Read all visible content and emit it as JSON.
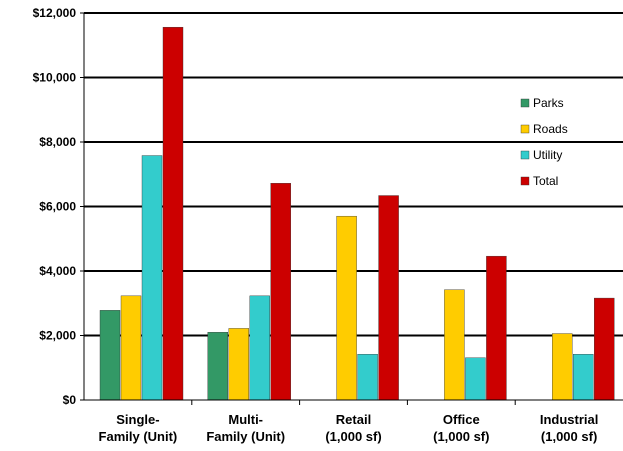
{
  "chart_data": {
    "type": "bar",
    "title": "",
    "xlabel": "",
    "ylabel": "",
    "ylim": [
      0,
      12000
    ],
    "yticks": [
      "$0",
      "$2,000",
      "$4,000",
      "$6,000",
      "$8,000",
      "$10,000",
      "$12,000"
    ],
    "ytick_values": [
      0,
      2000,
      4000,
      6000,
      8000,
      10000,
      12000
    ],
    "grid": "horizontal",
    "legend_position": "right",
    "categories": [
      [
        "Single-",
        "Family (Unit)"
      ],
      [
        "Multi-",
        "Family (Unit)"
      ],
      [
        "Retail",
        "(1,000 sf)"
      ],
      [
        "Office",
        "(1,000 sf)"
      ],
      [
        "Industrial",
        "(1,000 sf)"
      ]
    ],
    "series": [
      {
        "name": "Parks",
        "color": "#339966",
        "values": [
          2780,
          2100,
          null,
          null,
          null
        ]
      },
      {
        "name": "Roads",
        "color": "#ffcc00",
        "values": [
          3230,
          2220,
          5700,
          3420,
          2060
        ]
      },
      {
        "name": "Utility",
        "color": "#33cccc",
        "values": [
          7580,
          3230,
          1420,
          1310,
          1420
        ]
      },
      {
        "name": "Total",
        "color": "#cc0000",
        "values": [
          11560,
          6720,
          6340,
          4460,
          3160
        ]
      }
    ]
  }
}
